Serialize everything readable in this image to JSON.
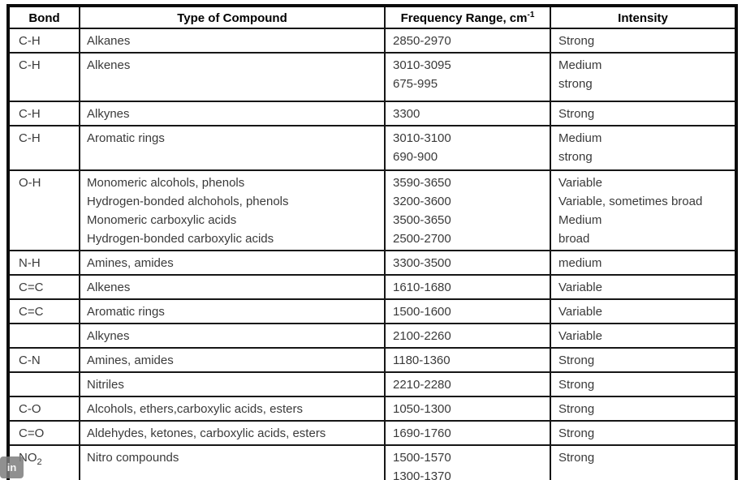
{
  "table": {
    "header": [
      {
        "label": "Bond"
      },
      {
        "label": "Type of Compound"
      },
      {
        "label": "Frequency Range, cm",
        "sup": "-1"
      },
      {
        "label": "Intensity"
      }
    ],
    "rows": [
      {
        "bond": "C-H",
        "compound": [
          "Alkanes"
        ],
        "frequency": [
          "2850-2970"
        ],
        "intensity": [
          "Strong"
        ]
      },
      {
        "bond": "C-H",
        "compound": [
          "Alkenes"
        ],
        "frequency": [
          "3010-3095",
          "675-995"
        ],
        "intensity": [
          "Medium",
          "strong"
        ]
      },
      {
        "bond": "C-H",
        "compound": [
          "Alkynes"
        ],
        "frequency": [
          "3300"
        ],
        "intensity": [
          "Strong"
        ]
      },
      {
        "bond": "C-H",
        "compound": [
          "Aromatic rings"
        ],
        "frequency": [
          "3010-3100",
          "690-900"
        ],
        "intensity": [
          "Medium",
          "strong"
        ]
      },
      {
        "bond": "O-H",
        "compound": [
          "Monomeric alcohols, phenols",
          "Hydrogen-bonded alchohols, phenols",
          "Monomeric carboxylic acids",
          "Hydrogen-bonded carboxylic acids"
        ],
        "frequency": [
          "3590-3650",
          "3200-3600",
          "3500-3650",
          "2500-2700"
        ],
        "intensity": [
          "Variable",
          "Variable, sometimes broad",
          "Medium",
          "broad"
        ]
      },
      {
        "bond": "N-H",
        "compound": [
          "Amines, amides"
        ],
        "frequency": [
          "3300-3500"
        ],
        "intensity": [
          "medium"
        ]
      },
      {
        "bond": "C=C",
        "compound": [
          "Alkenes"
        ],
        "frequency": [
          "1610-1680"
        ],
        "intensity": [
          "Variable"
        ]
      },
      {
        "bond": "C=C",
        "compound": [
          "Aromatic rings"
        ],
        "frequency": [
          "1500-1600"
        ],
        "intensity": [
          "Variable"
        ]
      },
      {
        "bond": "",
        "compound": [
          "Alkynes"
        ],
        "frequency": [
          "2100-2260"
        ],
        "intensity": [
          "Variable"
        ]
      },
      {
        "bond": "C-N",
        "compound": [
          "Amines, amides"
        ],
        "frequency": [
          "1180-1360"
        ],
        "intensity": [
          "Strong"
        ]
      },
      {
        "bond": "",
        "compound": [
          "Nitriles"
        ],
        "frequency": [
          "2210-2280"
        ],
        "intensity": [
          "Strong"
        ]
      },
      {
        "bond": "C-O",
        "compound": [
          "Alcohols, ethers,carboxylic acids, esters"
        ],
        "frequency": [
          "1050-1300"
        ],
        "intensity": [
          "Strong"
        ]
      },
      {
        "bond": "C=O",
        "compound": [
          "Aldehydes, ketones, carboxylic acids, esters"
        ],
        "frequency": [
          "1690-1760"
        ],
        "intensity": [
          "Strong"
        ]
      },
      {
        "bond": "NO",
        "bond_sub": "2",
        "compound": [
          "Nitro compounds"
        ],
        "frequency": [
          "1500-1570",
          "1300-1370"
        ],
        "intensity": [
          "Strong"
        ]
      }
    ]
  },
  "badge": {
    "label": "in"
  },
  "colors": {
    "border": "#161616",
    "outer_border": "#0b0b0b",
    "body_text": "#3a3a3a",
    "header_text": "#000000",
    "badge_bg": "#7d7d7d"
  }
}
